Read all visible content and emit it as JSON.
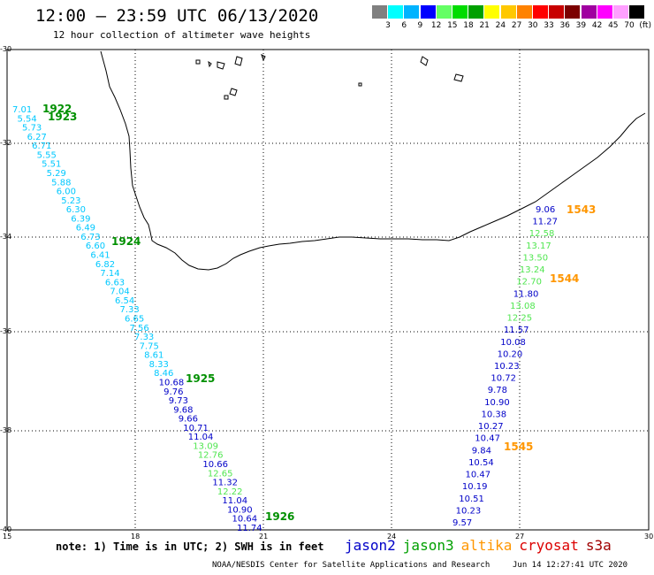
{
  "header": {
    "title": "12:00 – 23:59 UTC 06/13/2020",
    "subtitle": "12 hour collection of altimeter wave heights"
  },
  "legend": {
    "colors": [
      "#808080",
      "#00ffff",
      "#00b4ff",
      "#0000ff",
      "#64ff64",
      "#00dc00",
      "#00a000",
      "#ffff00",
      "#ffc800",
      "#ff8200",
      "#ff0000",
      "#c80000",
      "#7c0000",
      "#a000a0",
      "#ff00ff",
      "#ffa0ff",
      "#000000"
    ],
    "labels": [
      "3",
      "6",
      "9",
      "12",
      "15",
      "18",
      "21",
      "24",
      "27",
      "30",
      "33",
      "36",
      "39",
      "42",
      "45",
      "70",
      "(ft)"
    ]
  },
  "axes": {
    "lat_labels": [
      "-30",
      "-32",
      "-34",
      "-36",
      "-38",
      "-40"
    ],
    "lon_labels": [
      "15",
      "18",
      "21",
      "24",
      "27",
      "30"
    ]
  },
  "footer": {
    "note": "note:  1) Time is in UTC;  2) SWH is in feet",
    "satellites": [
      {
        "name": "jason2",
        "color": "#0000c8"
      },
      {
        "name": "jason3",
        "color": "#00a000"
      },
      {
        "name": "altika",
        "color": "#ff9600"
      },
      {
        "name": "cryosat",
        "color": "#dc0000"
      },
      {
        "name": "s3a",
        "color": "#a00000"
      }
    ],
    "credit": "NOAA/NESDIS Center for Satellite Applications and Research",
    "stamp": "Jun 14 12:27:41 UTC 2020"
  },
  "tracks": {
    "west": {
      "times": [
        {
          "label": "1922",
          "color": "#009000"
        },
        {
          "label": "1923",
          "color": "#009000"
        },
        {
          "label": "1924",
          "color": "#009000"
        },
        {
          "label": "1925",
          "color": "#009000"
        },
        {
          "label": "1926",
          "color": "#009000"
        }
      ],
      "values": [
        "7.01",
        "5.54",
        "5.73",
        "6.27",
        "6.71",
        "5.55",
        "5.51",
        "5.29",
        "5.88",
        "6.00",
        "5.23",
        "6.30",
        "6.39",
        "6.49",
        "6.73",
        "6.60",
        "6.41",
        "6.82",
        "7.14",
        "6.63",
        "7.04",
        "6.54",
        "7.33",
        "6.65",
        "7.56",
        "7.33",
        "7.75",
        "8.61",
        "8.33",
        "8.46",
        "10.68",
        "9.76",
        "9.73",
        "9.68",
        "9.66",
        "10.71",
        "11.04",
        "13.09",
        "12.76",
        "10.66",
        "12.65",
        "11.32",
        "12.22",
        "11.04",
        "10.90",
        "10.64",
        "11.74"
      ],
      "colors": [
        "#00c8ff",
        "#00c8ff",
        "#00c8ff",
        "#00c8ff",
        "#00c8ff",
        "#00c8ff",
        "#00c8ff",
        "#00c8ff",
        "#00c8ff",
        "#00c8ff",
        "#00c8ff",
        "#00c8ff",
        "#00c8ff",
        "#00c8ff",
        "#00c8ff",
        "#00c8ff",
        "#00c8ff",
        "#00c8ff",
        "#00c8ff",
        "#00c8ff",
        "#00c8ff",
        "#00c8ff",
        "#00c8ff",
        "#00c8ff",
        "#00c8ff",
        "#00c8ff",
        "#00c8ff",
        "#00c8ff",
        "#00c8ff",
        "#00c8ff",
        "#0000c8",
        "#0000c8",
        "#0000c8",
        "#0000c8",
        "#0000c8",
        "#0000c8",
        "#0000c8",
        "#50e650",
        "#50e650",
        "#0000c8",
        "#50e650",
        "#0000c8",
        "#50e650",
        "#0000c8",
        "#0000c8",
        "#0000c8",
        "#0000c8"
      ]
    },
    "east": {
      "times": [
        {
          "label": "1543",
          "color": "#ff9600"
        },
        {
          "label": "1544",
          "color": "#ff9600"
        },
        {
          "label": "1545",
          "color": "#ff9600"
        }
      ],
      "values": [
        "9.06",
        "11.27",
        "12.58",
        "13.17",
        "13.50",
        "13.24",
        "12.70",
        "11.80",
        "13.08",
        "12.25",
        "11.57",
        "10.08",
        "10.20",
        "10.23",
        "10.72",
        "9.78",
        "10.90",
        "10.38",
        "10.27",
        "10.47",
        "9.84",
        "10.54",
        "10.47",
        "10.19",
        "10.51",
        "10.23",
        "9.57"
      ],
      "colors": [
        "#0000c8",
        "#0000c8",
        "#50e650",
        "#50e650",
        "#50e650",
        "#50e650",
        "#50e650",
        "#0000c8",
        "#50e650",
        "#50e650",
        "#0000c8",
        "#0000c8",
        "#0000c8",
        "#0000c8",
        "#0000c8",
        "#0000c8",
        "#0000c8",
        "#0000c8",
        "#0000c8",
        "#0000c8",
        "#0000c8",
        "#0000c8",
        "#0000c8",
        "#0000c8",
        "#0000c8",
        "#0000c8",
        "#0000c8"
      ]
    }
  }
}
